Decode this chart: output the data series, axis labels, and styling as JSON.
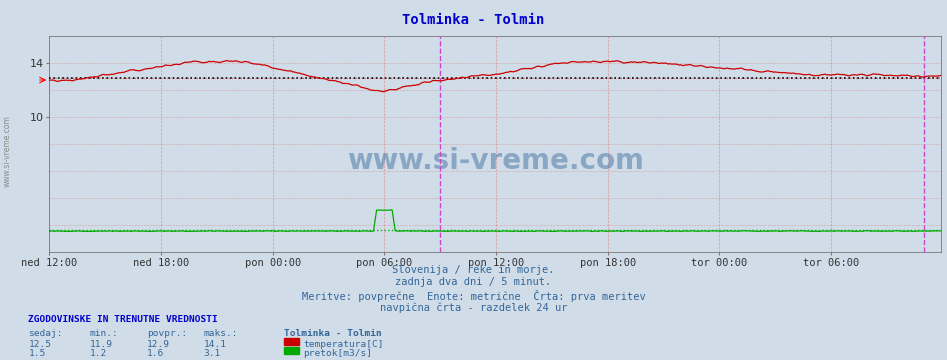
{
  "title": "Tolminka - Tolmin",
  "title_color": "#0000cc",
  "bg_color": "#d0dde8",
  "plot_bg_color": "#d0dde8",
  "x_labels": [
    "ned 12:00",
    "ned 18:00",
    "pon 00:00",
    "pon 06:00",
    "pon 12:00",
    "pon 18:00",
    "tor 00:00",
    "tor 06:00"
  ],
  "x_ticks": [
    0,
    72,
    144,
    216,
    288,
    360,
    432,
    504
  ],
  "total_points": 576,
  "ylim": [
    0,
    16
  ],
  "yticks": [
    10,
    14
  ],
  "temp_avg": 12.9,
  "flow_avg": 1.6,
  "temp_color": "#cc0000",
  "flow_color": "#00aa00",
  "black_avg_color": "#000000",
  "vline_24h_color": "#cc44cc",
  "vline_grid_color": "#dd6666",
  "hline_grid_color": "#dd6666",
  "watermark": "www.si-vreme.com",
  "watermark_color": "#336699",
  "left_label": "www.si-vreme.com",
  "bottom_text1": "Slovenija / reke in morje.",
  "bottom_text2": "zadnja dva dni / 5 minut.",
  "bottom_text3": "Meritve: povprečne  Enote: metrične  Črta: prva meritev",
  "bottom_text4": "navpična črta - razdelek 24 ur",
  "legend_title": "Tolminka - Tolmin",
  "sedaj_temp": 12.5,
  "min_temp": 11.9,
  "povpr_temp": 12.9,
  "maks_temp": 14.1,
  "sedaj_flow": 1.5,
  "min_flow": 1.2,
  "povpr_flow": 1.6,
  "maks_flow": 3.1,
  "label_temp": "temperatura[C]",
  "label_flow": "pretok[m3/s]",
  "stat_label_color": "#336699",
  "header_color": "#0000cc"
}
